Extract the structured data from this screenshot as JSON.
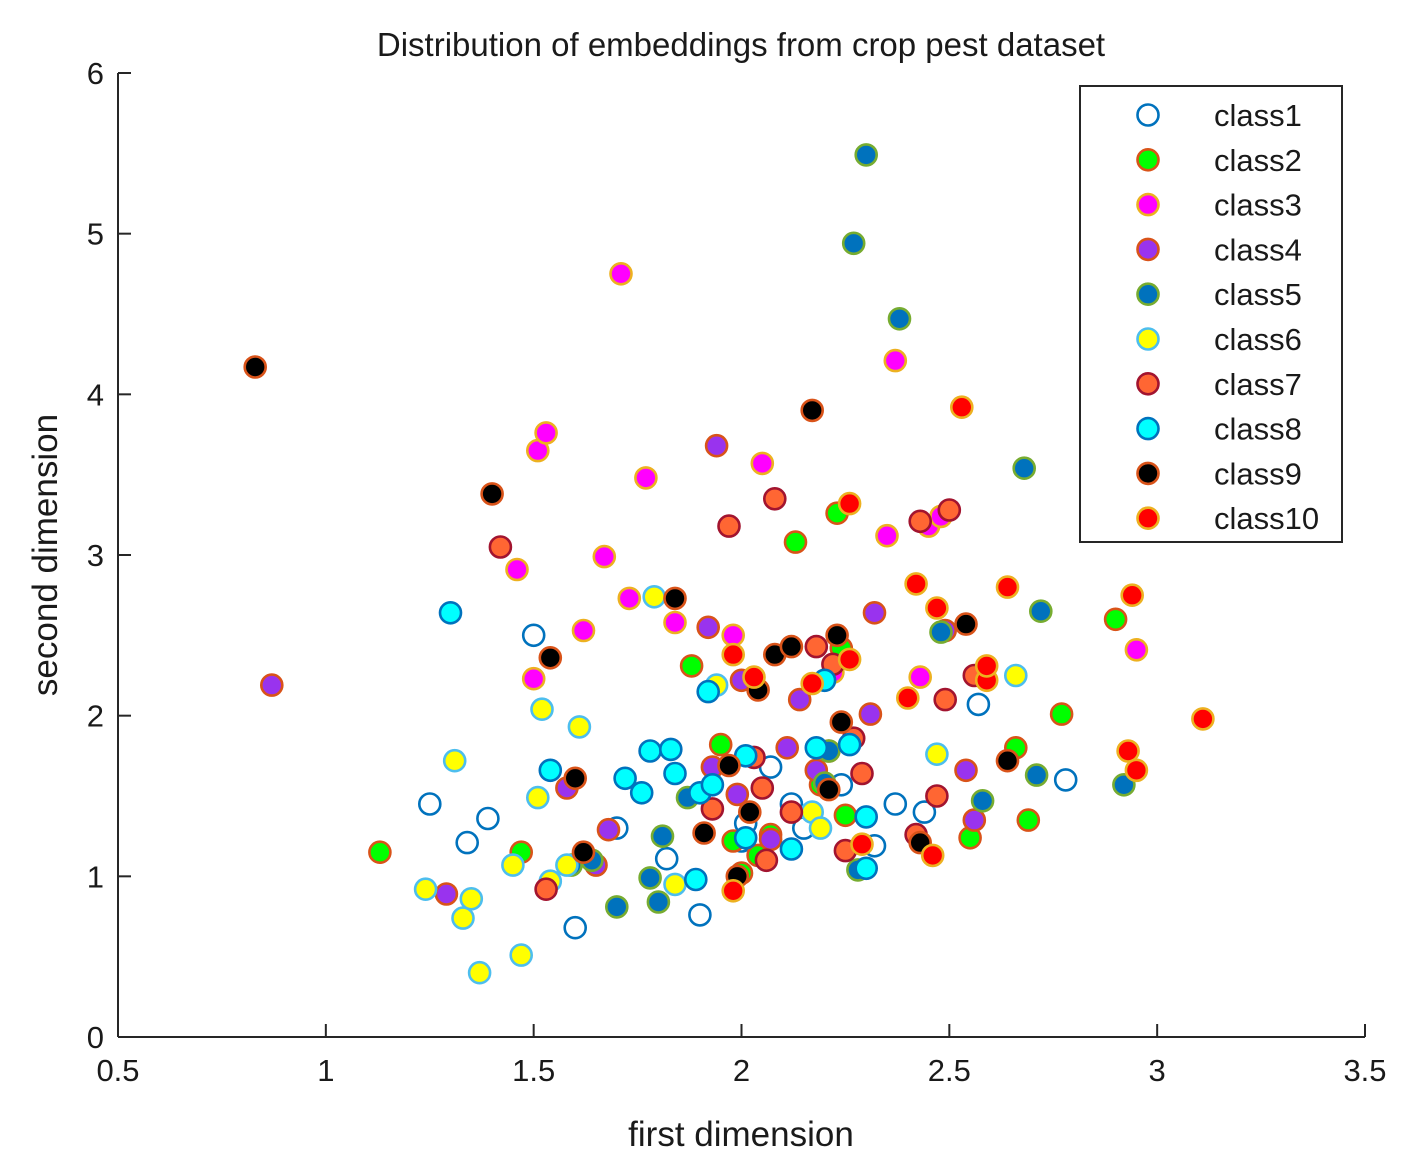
{
  "chart_data": {
    "type": "scatter",
    "title": "Distribution of embeddings from crop pest dataset",
    "xlabel": "first dimension",
    "ylabel": "second dimension",
    "xlim": [
      0.5,
      3.5
    ],
    "ylim": [
      0,
      6
    ],
    "xticks": [
      0.5,
      1,
      1.5,
      2,
      2.5,
      3,
      3.5
    ],
    "xtick_labels": [
      "0.5",
      "1",
      "1.5",
      "2",
      "2.5",
      "3",
      "3.5"
    ],
    "yticks": [
      0,
      1,
      2,
      3,
      4,
      5,
      6
    ],
    "ytick_labels": [
      "0",
      "1",
      "2",
      "3",
      "4",
      "5",
      "6"
    ],
    "grid": false,
    "legend_position": "top-right",
    "series": [
      {
        "name": "class1",
        "fill": "none",
        "edge": "#0072BD",
        "points": [
          [
            1.25,
            1.45
          ],
          [
            1.34,
            1.21
          ],
          [
            1.39,
            1.36
          ],
          [
            1.5,
            2.5
          ],
          [
            1.6,
            0.68
          ],
          [
            1.7,
            1.3
          ],
          [
            1.82,
            1.11
          ],
          [
            1.9,
            0.76
          ],
          [
            2.01,
            1.33
          ],
          [
            2.07,
            1.68
          ],
          [
            2.12,
            1.45
          ],
          [
            2.24,
            1.57
          ],
          [
            2.32,
            1.19
          ],
          [
            2.37,
            1.45
          ],
          [
            2.44,
            1.4
          ],
          [
            2.57,
            2.07
          ],
          [
            2.78,
            1.6
          ],
          [
            2.0,
            1.22
          ],
          [
            2.15,
            1.3
          ]
        ]
      },
      {
        "name": "class2",
        "fill": "#00FF00",
        "edge": "#D95319",
        "points": [
          [
            1.13,
            1.15
          ],
          [
            1.47,
            1.15
          ],
          [
            1.88,
            2.31
          ],
          [
            1.95,
            1.82
          ],
          [
            1.98,
            1.22
          ],
          [
            2.0,
            1.02
          ],
          [
            2.07,
            1.26
          ],
          [
            2.13,
            3.08
          ],
          [
            2.19,
            1.57
          ],
          [
            2.23,
            3.26
          ],
          [
            2.24,
            2.42
          ],
          [
            2.25,
            1.38
          ],
          [
            2.55,
            1.24
          ],
          [
            2.66,
            1.8
          ],
          [
            2.69,
            1.35
          ],
          [
            2.77,
            2.01
          ],
          [
            2.9,
            2.6
          ],
          [
            2.04,
            1.13
          ],
          [
            2.21,
            1.78
          ]
        ]
      },
      {
        "name": "class3",
        "fill": "#FF00FF",
        "edge": "#EDB120",
        "points": [
          [
            1.46,
            2.91
          ],
          [
            1.5,
            2.23
          ],
          [
            1.51,
            3.65
          ],
          [
            1.53,
            3.76
          ],
          [
            1.62,
            2.53
          ],
          [
            1.67,
            2.99
          ],
          [
            1.71,
            4.75
          ],
          [
            1.73,
            2.73
          ],
          [
            1.77,
            3.48
          ],
          [
            1.84,
            2.58
          ],
          [
            1.98,
            2.5
          ],
          [
            2.05,
            3.57
          ],
          [
            2.22,
            2.27
          ],
          [
            2.35,
            3.12
          ],
          [
            2.37,
            4.21
          ],
          [
            2.43,
            2.24
          ],
          [
            2.45,
            3.18
          ],
          [
            2.48,
            3.24
          ],
          [
            2.95,
            2.41
          ]
        ]
      },
      {
        "name": "class4",
        "fill": "#9933EE",
        "edge": "#D95319",
        "points": [
          [
            0.87,
            2.19
          ],
          [
            1.29,
            0.89
          ],
          [
            1.58,
            1.55
          ],
          [
            1.65,
            1.07
          ],
          [
            1.68,
            1.29
          ],
          [
            1.92,
            2.55
          ],
          [
            1.93,
            1.68
          ],
          [
            1.94,
            3.68
          ],
          [
            1.99,
            1.51
          ],
          [
            2.0,
            2.22
          ],
          [
            2.07,
            1.23
          ],
          [
            2.11,
            1.8
          ],
          [
            2.14,
            2.1
          ],
          [
            2.18,
            1.66
          ],
          [
            2.31,
            2.01
          ],
          [
            2.32,
            2.64
          ],
          [
            2.54,
            1.66
          ],
          [
            2.56,
            1.35
          ],
          [
            2.49,
            2.53
          ]
        ]
      },
      {
        "name": "class5",
        "fill": "#0072BD",
        "edge": "#77AC30",
        "points": [
          [
            1.59,
            1.07
          ],
          [
            1.64,
            1.1
          ],
          [
            1.7,
            0.81
          ],
          [
            1.78,
            0.99
          ],
          [
            1.8,
            0.84
          ],
          [
            1.81,
            1.25
          ],
          [
            1.87,
            1.49
          ],
          [
            2.2,
            1.58
          ],
          [
            2.21,
            1.78
          ],
          [
            2.27,
            4.94
          ],
          [
            2.28,
            1.04
          ],
          [
            2.3,
            5.49
          ],
          [
            2.38,
            4.47
          ],
          [
            2.48,
            2.52
          ],
          [
            2.58,
            1.47
          ],
          [
            2.68,
            3.54
          ],
          [
            2.71,
            1.63
          ],
          [
            2.72,
            2.65
          ],
          [
            2.92,
            1.57
          ]
        ]
      },
      {
        "name": "class6",
        "fill": "#FFFF00",
        "edge": "#4DBEEE",
        "points": [
          [
            1.24,
            0.92
          ],
          [
            1.31,
            1.72
          ],
          [
            1.33,
            0.74
          ],
          [
            1.35,
            0.86
          ],
          [
            1.37,
            0.4
          ],
          [
            1.45,
            1.07
          ],
          [
            1.47,
            0.51
          ],
          [
            1.51,
            1.49
          ],
          [
            1.52,
            2.04
          ],
          [
            1.54,
            0.97
          ],
          [
            1.58,
            1.07
          ],
          [
            1.61,
            1.93
          ],
          [
            1.79,
            2.74
          ],
          [
            1.84,
            0.95
          ],
          [
            1.94,
            2.19
          ],
          [
            2.17,
            1.4
          ],
          [
            2.19,
            1.3
          ],
          [
            2.47,
            1.76
          ],
          [
            2.66,
            2.25
          ]
        ]
      },
      {
        "name": "class7",
        "fill": "#FF6633",
        "edge": "#A2142F",
        "points": [
          [
            1.42,
            3.05
          ],
          [
            1.53,
            0.92
          ],
          [
            1.93,
            1.42
          ],
          [
            1.97,
            3.18
          ],
          [
            2.03,
            1.74
          ],
          [
            2.05,
            1.55
          ],
          [
            2.06,
            1.1
          ],
          [
            2.08,
            3.35
          ],
          [
            2.12,
            1.4
          ],
          [
            2.18,
            2.43
          ],
          [
            2.22,
            2.32
          ],
          [
            2.25,
            1.16
          ],
          [
            2.27,
            1.86
          ],
          [
            2.29,
            1.64
          ],
          [
            2.42,
            1.26
          ],
          [
            2.43,
            3.21
          ],
          [
            2.47,
            1.5
          ],
          [
            2.49,
            2.1
          ],
          [
            2.5,
            3.28
          ],
          [
            2.56,
            2.25
          ]
        ]
      },
      {
        "name": "class8",
        "fill": "#00FFFF",
        "edge": "#0072BD",
        "points": [
          [
            1.3,
            2.64
          ],
          [
            1.54,
            1.66
          ],
          [
            1.72,
            1.61
          ],
          [
            1.76,
            1.52
          ],
          [
            1.78,
            1.78
          ],
          [
            1.83,
            1.79
          ],
          [
            1.84,
            1.64
          ],
          [
            1.89,
            0.98
          ],
          [
            1.9,
            1.52
          ],
          [
            1.92,
            2.15
          ],
          [
            1.93,
            1.57
          ],
          [
            2.01,
            1.75
          ],
          [
            2.01,
            1.24
          ],
          [
            2.12,
            1.17
          ],
          [
            2.18,
            1.8
          ],
          [
            2.2,
            2.22
          ],
          [
            2.26,
            1.82
          ],
          [
            2.3,
            1.37
          ],
          [
            2.3,
            1.05
          ]
        ]
      },
      {
        "name": "class9",
        "fill": "#000000",
        "edge": "#D95319",
        "points": [
          [
            0.83,
            4.17
          ],
          [
            1.4,
            3.38
          ],
          [
            1.54,
            2.36
          ],
          [
            1.6,
            1.61
          ],
          [
            1.62,
            1.15
          ],
          [
            1.84,
            2.73
          ],
          [
            1.91,
            1.27
          ],
          [
            1.97,
            1.69
          ],
          [
            1.99,
            1.0
          ],
          [
            2.02,
            1.4
          ],
          [
            2.04,
            2.16
          ],
          [
            2.08,
            2.38
          ],
          [
            2.12,
            2.43
          ],
          [
            2.17,
            3.9
          ],
          [
            2.21,
            1.54
          ],
          [
            2.23,
            2.5
          ],
          [
            2.24,
            1.96
          ],
          [
            2.43,
            1.21
          ],
          [
            2.54,
            2.57
          ],
          [
            2.64,
            1.72
          ]
        ]
      },
      {
        "name": "class10",
        "fill": "#FF0000",
        "edge": "#EDB120",
        "points": [
          [
            1.98,
            0.91
          ],
          [
            1.98,
            2.38
          ],
          [
            2.03,
            2.24
          ],
          [
            2.17,
            2.2
          ],
          [
            2.26,
            3.32
          ],
          [
            2.26,
            2.35
          ],
          [
            2.29,
            1.2
          ],
          [
            2.4,
            2.11
          ],
          [
            2.42,
            2.82
          ],
          [
            2.46,
            1.13
          ],
          [
            2.47,
            2.67
          ],
          [
            2.53,
            3.92
          ],
          [
            2.59,
            2.22
          ],
          [
            2.59,
            2.31
          ],
          [
            2.64,
            2.8
          ],
          [
            2.93,
            1.78
          ],
          [
            2.94,
            2.75
          ],
          [
            2.95,
            1.66
          ],
          [
            3.11,
            1.98
          ]
        ]
      }
    ]
  }
}
